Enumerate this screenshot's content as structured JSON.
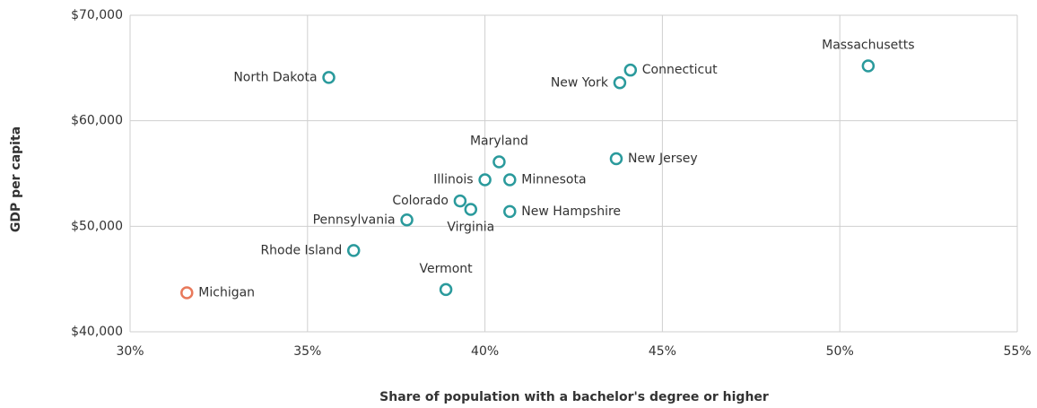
{
  "chart_data": {
    "type": "scatter",
    "x_label": "Share of population with a bachelor's degree or higher",
    "y_label": "GDP per capita",
    "series": [
      {
        "name": "States",
        "color": "#2a9a9c",
        "labels": [
          "North Dakota",
          "Connecticut",
          "New York",
          "Massachusetts",
          "Maryland",
          "New Jersey",
          "Illinois",
          "Minnesota",
          "Colorado",
          "Virginia",
          "New Hampshire",
          "Pennsylvania",
          "Rhode Island",
          "Vermont"
        ],
        "x": [
          35.6,
          44.1,
          43.8,
          50.8,
          40.4,
          43.7,
          40.0,
          40.7,
          39.3,
          39.6,
          40.7,
          37.8,
          36.3,
          38.9
        ],
        "values": [
          64100,
          64800,
          63600,
          65200,
          56100,
          56400,
          54400,
          54400,
          52400,
          51600,
          51400,
          50600,
          47700,
          44000
        ]
      },
      {
        "name": "Michigan",
        "color": "#e8795b",
        "labels": [
          "Michigan"
        ],
        "x": [
          31.6
        ],
        "values": [
          43700
        ]
      }
    ],
    "xlim": [
      30,
      55
    ],
    "xticks": [
      {
        "value": 30,
        "label": "30%"
      },
      {
        "value": 35,
        "label": "35%"
      },
      {
        "value": 40,
        "label": "40%"
      },
      {
        "value": 45,
        "label": "45%"
      },
      {
        "value": 50,
        "label": "50%"
      },
      {
        "value": 55,
        "label": "55%"
      }
    ],
    "ylim": [
      40000,
      70000
    ],
    "yticks": [
      {
        "value": 40000,
        "label": "$40,000"
      },
      {
        "value": 50000,
        "label": "$50,000"
      },
      {
        "value": 60000,
        "label": "$60,000"
      },
      {
        "value": 70000,
        "label": "$70,000"
      }
    ],
    "grid": true
  }
}
